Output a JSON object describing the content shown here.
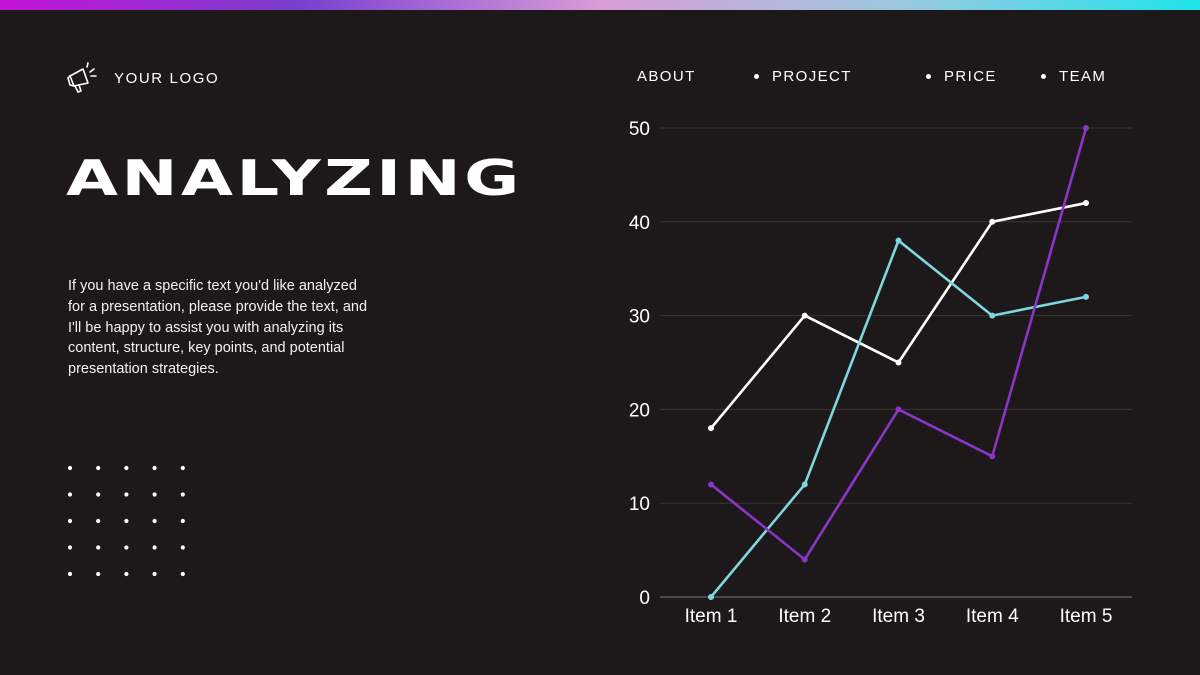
{
  "colors": {
    "background": "#1d191a",
    "gradient": [
      "#c414d6",
      "#7a3fd0",
      "#d89bd8",
      "#9cc8e0",
      "#1ee3ea"
    ],
    "series": [
      "#ffffff",
      "#7fd6e0",
      "#8b35c6"
    ],
    "gridline": "#3a3536"
  },
  "logo": {
    "icon": "megaphone-icon",
    "text": "YOUR LOGO"
  },
  "nav": {
    "items": [
      {
        "label": "ABOUT",
        "dot": false
      },
      {
        "label": "PROJECT",
        "dot": true
      },
      {
        "label": "PRICE",
        "dot": true
      },
      {
        "label": "TEAM",
        "dot": true
      }
    ]
  },
  "headline": "ANALYZING",
  "body": "If you have a specific text you'd like analyzed for a presentation, please provide the text, and I'll be happy to assist you with analyzing its content, structure, key points, and potential presentation strategies.",
  "decoration": {
    "dot_grid": {
      "rows": 5,
      "cols": 5
    }
  },
  "chart_data": {
    "type": "line",
    "categories": [
      "Item 1",
      "Item 2",
      "Item 3",
      "Item 4",
      "Item 5"
    ],
    "series": [
      {
        "values": [
          18,
          30,
          25,
          40,
          42
        ],
        "color": "#ffffff"
      },
      {
        "values": [
          0,
          12,
          38,
          30,
          32
        ],
        "color": "#7fd6e0"
      },
      {
        "values": [
          12,
          4,
          20,
          15,
          50
        ],
        "color": "#8b35c6"
      }
    ],
    "ylim": [
      0,
      50
    ],
    "yticks": [
      0,
      10,
      20,
      30,
      40,
      50
    ],
    "grid": true,
    "legend": "none",
    "title": "",
    "xlabel": "",
    "ylabel": ""
  }
}
